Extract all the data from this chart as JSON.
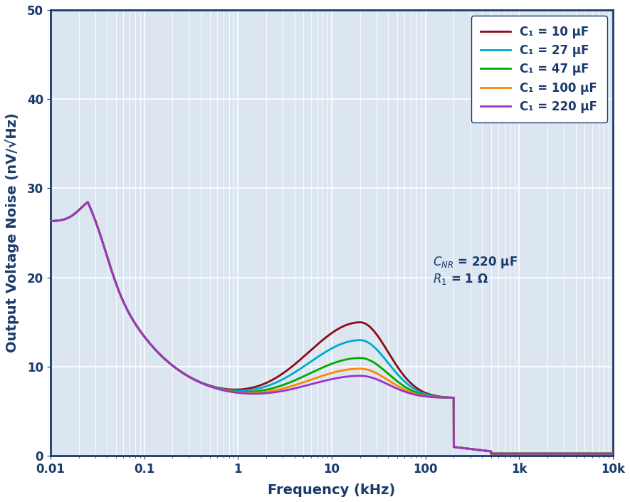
{
  "xlabel": "Frequency (kHz)",
  "ylabel": "Output Voltage Noise (nV/√Hz)",
  "xlim": [
    0.01,
    10000
  ],
  "ylim": [
    0,
    50
  ],
  "yticks": [
    0,
    10,
    20,
    30,
    40,
    50
  ],
  "background_color": "#ffffff",
  "plot_bg_color": "#dce6f0",
  "grid_color": "#ffffff",
  "border_color": "#1a3a6b",
  "text_color": "#1a3a6b",
  "legend_labels": [
    "C₁ = 10 μF",
    "C₁ = 27 μF",
    "C₁ = 47 μF",
    "C₁ = 100 μF",
    "C₁ = 220 μF"
  ],
  "line_colors": [
    "#8b0a1a",
    "#00aacc",
    "#00aa00",
    "#ff8800",
    "#9933cc"
  ],
  "line_widths": [
    2.0,
    2.0,
    2.0,
    2.0,
    2.0
  ],
  "C1_values": [
    10,
    27,
    47,
    100,
    220
  ],
  "peak_heights": [
    15.0,
    13.0,
    11.0,
    9.8,
    9.0
  ],
  "f_peak_all": 20.0,
  "noise_floor": 6.5,
  "lf_start_val": 25.5,
  "lf_knee": 0.025
}
